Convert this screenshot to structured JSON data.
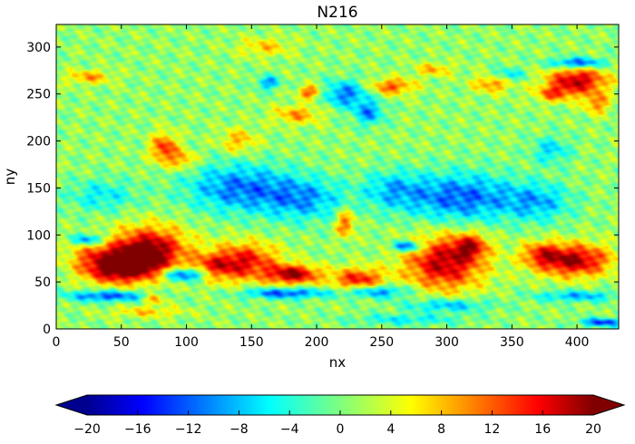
{
  "chart_data": {
    "type": "heatmap",
    "title": "N216",
    "xlabel": "nx",
    "ylabel": "ny",
    "xlim": [
      0,
      432
    ],
    "ylim": [
      0,
      324
    ],
    "x_ticks": [
      0,
      50,
      100,
      150,
      200,
      250,
      300,
      350,
      400
    ],
    "y_ticks": [
      0,
      50,
      100,
      150,
      200,
      250,
      300
    ],
    "colormap": "jet",
    "colorbar": {
      "orientation": "horizontal",
      "extend": "both",
      "vmin": -20,
      "vmax": 20,
      "ticks": [
        -20,
        -16,
        -12,
        -8,
        -4,
        0,
        4,
        8,
        12,
        16,
        20
      ],
      "tick_labels": [
        "−20",
        "−16",
        "−12",
        "−8",
        "−4",
        "0",
        "4",
        "8",
        "12",
        "16",
        "20"
      ]
    },
    "field": {
      "background": 0.8,
      "features": [
        {
          "x": 72,
          "y": 85,
          "value": 17,
          "sx": 20,
          "sy": 17
        },
        {
          "x": 60,
          "y": 70,
          "value": 15,
          "sx": 16,
          "sy": 13
        },
        {
          "x": 40,
          "y": 62,
          "value": 12,
          "sx": 16,
          "sy": 10
        },
        {
          "x": 28,
          "y": 78,
          "value": 8,
          "sx": 14,
          "sy": 10
        },
        {
          "x": 145,
          "y": 72,
          "value": 14,
          "sx": 18,
          "sy": 14
        },
        {
          "x": 120,
          "y": 65,
          "value": 10,
          "sx": 13,
          "sy": 10
        },
        {
          "x": 182,
          "y": 58,
          "value": 18,
          "sx": 14,
          "sy": 7
        },
        {
          "x": 222,
          "y": 112,
          "value": 11,
          "sx": 5,
          "sy": 10
        },
        {
          "x": 232,
          "y": 52,
          "value": 14,
          "sx": 14,
          "sy": 9
        },
        {
          "x": 298,
          "y": 70,
          "value": 17,
          "sx": 21,
          "sy": 20
        },
        {
          "x": 318,
          "y": 88,
          "value": 12,
          "sx": 9,
          "sy": 9
        },
        {
          "x": 397,
          "y": 73,
          "value": 18,
          "sx": 20,
          "sy": 12
        },
        {
          "x": 372,
          "y": 80,
          "value": 9,
          "sx": 10,
          "sy": 9
        },
        {
          "x": 83,
          "y": 192,
          "value": 13,
          "sx": 7,
          "sy": 11
        },
        {
          "x": 98,
          "y": 180,
          "value": 8,
          "sx": 7,
          "sy": 7
        },
        {
          "x": 140,
          "y": 200,
          "value": 7,
          "sx": 10,
          "sy": 9
        },
        {
          "x": 185,
          "y": 228,
          "value": 8,
          "sx": 13,
          "sy": 7
        },
        {
          "x": 195,
          "y": 252,
          "value": 12,
          "sx": 6,
          "sy": 5
        },
        {
          "x": 258,
          "y": 258,
          "value": 11,
          "sx": 12,
          "sy": 6
        },
        {
          "x": 335,
          "y": 262,
          "value": 10,
          "sx": 10,
          "sy": 7
        },
        {
          "x": 400,
          "y": 264,
          "value": 17,
          "sx": 16,
          "sy": 10
        },
        {
          "x": 382,
          "y": 250,
          "value": 9,
          "sx": 10,
          "sy": 6
        },
        {
          "x": 415,
          "y": 240,
          "value": 9,
          "sx": 7,
          "sy": 8
        },
        {
          "x": 25,
          "y": 268,
          "value": 8,
          "sx": 12,
          "sy": 5
        },
        {
          "x": 160,
          "y": 300,
          "value": 6,
          "sx": 14,
          "sy": 7
        },
        {
          "x": 290,
          "y": 276,
          "value": 7,
          "sx": 10,
          "sy": 5
        },
        {
          "x": 70,
          "y": 18,
          "value": 6,
          "sx": 20,
          "sy": 4
        },
        {
          "x": 75,
          "y": 32,
          "value": 9,
          "sx": 6,
          "sy": 4
        },
        {
          "x": 140,
          "y": 150,
          "value": -11,
          "sx": 28,
          "sy": 18
        },
        {
          "x": 190,
          "y": 138,
          "value": -9,
          "sx": 22,
          "sy": 16
        },
        {
          "x": 310,
          "y": 140,
          "value": -12,
          "sx": 30,
          "sy": 18
        },
        {
          "x": 370,
          "y": 135,
          "value": -8,
          "sx": 18,
          "sy": 14
        },
        {
          "x": 35,
          "y": 142,
          "value": -6,
          "sx": 18,
          "sy": 12
        },
        {
          "x": 258,
          "y": 148,
          "value": -7,
          "sx": 16,
          "sy": 14
        },
        {
          "x": 100,
          "y": 58,
          "value": -16,
          "sx": 12,
          "sy": 5
        },
        {
          "x": 245,
          "y": 40,
          "value": -12,
          "sx": 18,
          "sy": 5
        },
        {
          "x": 300,
          "y": 25,
          "value": -9,
          "sx": 22,
          "sy": 5
        },
        {
          "x": 40,
          "y": 35,
          "value": -13,
          "sx": 22,
          "sy": 4
        },
        {
          "x": 175,
          "y": 38,
          "value": -13,
          "sx": 22,
          "sy": 4
        },
        {
          "x": 400,
          "y": 35,
          "value": -9,
          "sx": 22,
          "sy": 4
        },
        {
          "x": 270,
          "y": 10,
          "value": -6,
          "sx": 30,
          "sy": 4
        },
        {
          "x": 420,
          "y": 7,
          "value": -14,
          "sx": 12,
          "sy": 3
        },
        {
          "x": 270,
          "y": 88,
          "value": -15,
          "sx": 8,
          "sy": 4
        },
        {
          "x": 25,
          "y": 95,
          "value": -12,
          "sx": 8,
          "sy": 4
        },
        {
          "x": 222,
          "y": 250,
          "value": -11,
          "sx": 12,
          "sy": 10
        },
        {
          "x": 240,
          "y": 230,
          "value": -10,
          "sx": 8,
          "sy": 9
        },
        {
          "x": 163,
          "y": 262,
          "value": -10,
          "sx": 6,
          "sy": 5
        },
        {
          "x": 400,
          "y": 283,
          "value": -14,
          "sx": 14,
          "sy": 4
        },
        {
          "x": 345,
          "y": 270,
          "value": -8,
          "sx": 10,
          "sy": 5
        },
        {
          "x": 380,
          "y": 190,
          "value": -7,
          "sx": 10,
          "sy": 10
        }
      ]
    }
  }
}
